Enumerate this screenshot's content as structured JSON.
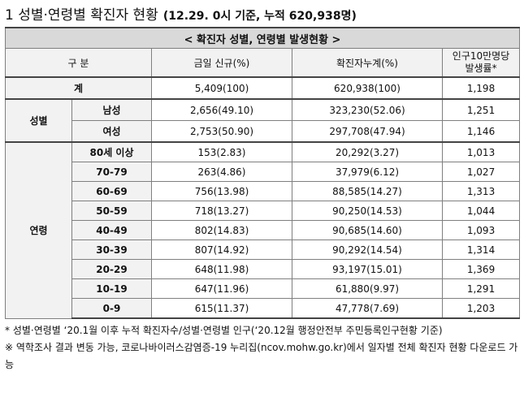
{
  "title": {
    "main": "1  성별·연령별 확진자 현황",
    "sub": "(12.29. 0시 기준, 누적 620,938명)"
  },
  "table": {
    "caption": "< 확진자 성별, 연령별 발생현황 >",
    "headers": {
      "category": "구  분",
      "new_today": "금일 신규(%)",
      "cumulative": "확진자누계(%)",
      "rate_line1": "인구10만명당",
      "rate_line2": "발생률*"
    },
    "total": {
      "label": "계",
      "new": "5,409(100)",
      "cumulative": "620,938(100)",
      "rate": "1,198"
    },
    "sex": {
      "group_label": "성별",
      "rows": [
        {
          "label": "남성",
          "new": "2,656(49.10)",
          "cumulative": "323,230(52.06)",
          "rate": "1,251"
        },
        {
          "label": "여성",
          "new": "2,753(50.90)",
          "cumulative": "297,708(47.94)",
          "rate": "1,146"
        }
      ]
    },
    "age": {
      "group_label": "연령",
      "rows": [
        {
          "label": "80세 이상",
          "new": "153(2.83)",
          "cumulative": "20,292(3.27)",
          "rate": "1,013"
        },
        {
          "label": "70-79",
          "new": "263(4.86)",
          "cumulative": "37,979(6.12)",
          "rate": "1,027"
        },
        {
          "label": "60-69",
          "new": "756(13.98)",
          "cumulative": "88,585(14.27)",
          "rate": "1,313"
        },
        {
          "label": "50-59",
          "new": "718(13.27)",
          "cumulative": "90,250(14.53)",
          "rate": "1,044"
        },
        {
          "label": "40-49",
          "new": "802(14.83)",
          "cumulative": "90,685(14.60)",
          "rate": "1,093"
        },
        {
          "label": "30-39",
          "new": "807(14.92)",
          "cumulative": "90,292(14.54)",
          "rate": "1,314"
        },
        {
          "label": "20-29",
          "new": "648(11.98)",
          "cumulative": "93,197(15.01)",
          "rate": "1,369"
        },
        {
          "label": "10-19",
          "new": "647(11.96)",
          "cumulative": "61,880(9.97)",
          "rate": "1,291"
        },
        {
          "label": "0-9",
          "new": "615(11.37)",
          "cumulative": "47,778(7.69)",
          "rate": "1,203"
        }
      ]
    }
  },
  "notes": {
    "note1": "* 성별·연령별 ‘20.1월 이후 누적 확진자수/성별·연령별 인구(‘20.12월 행정안전부 주민등록인구현황 기준)",
    "note2": "※ 역학조사 결과 변동 가능, 코로나바이러스감염증-19 누리집(ncov.mohw.go.kr)에서 일자별 전체 확진자 현황 다운로드 가능"
  }
}
